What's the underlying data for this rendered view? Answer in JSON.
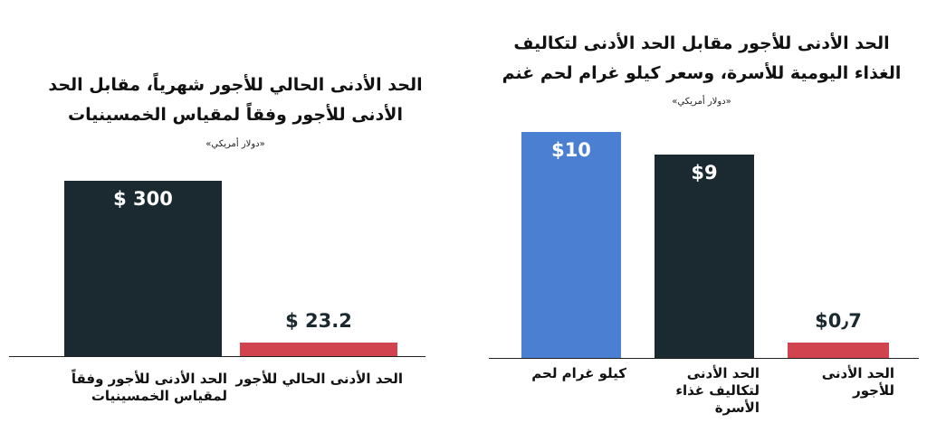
{
  "chart_data": [
    {
      "type": "bar",
      "title": "الحد الأدنى الحالي للأجور شهرياً، مقابل الحد الأدنى للأجور وفقاً لمقياس الخمسينيات",
      "subtitle": "«دولار أمريكي»",
      "categories": [
        "الحد الأدنى للأجور وفقاً لمقياس الخمسينيات",
        "الحد الأدنى الحالي للأجور"
      ],
      "values": [
        300,
        23.2
      ],
      "value_labels": [
        "$ 300",
        "$ 23.2"
      ],
      "colors": [
        "#1b2a30",
        "#d1434f"
      ]
    },
    {
      "type": "bar",
      "title": "الحد الأدنى للأجور مقابل الحد الأدنى لتكاليف الغذاء اليومية للأسرة، وسعر كيلو غرام لحم غنم",
      "subtitle": "«دولار أمريكي»",
      "categories": [
        "كيلو غرام لحم",
        "الحد الأدنى لتكاليف غذاء الأسرة",
        "الحد الأدنى للأجور"
      ],
      "values": [
        10,
        9,
        0.7
      ],
      "value_labels": [
        "$10",
        "$9",
        "$0٫7"
      ],
      "colors": [
        "#4a7fd1",
        "#1b2a30",
        "#d1434f"
      ]
    }
  ]
}
